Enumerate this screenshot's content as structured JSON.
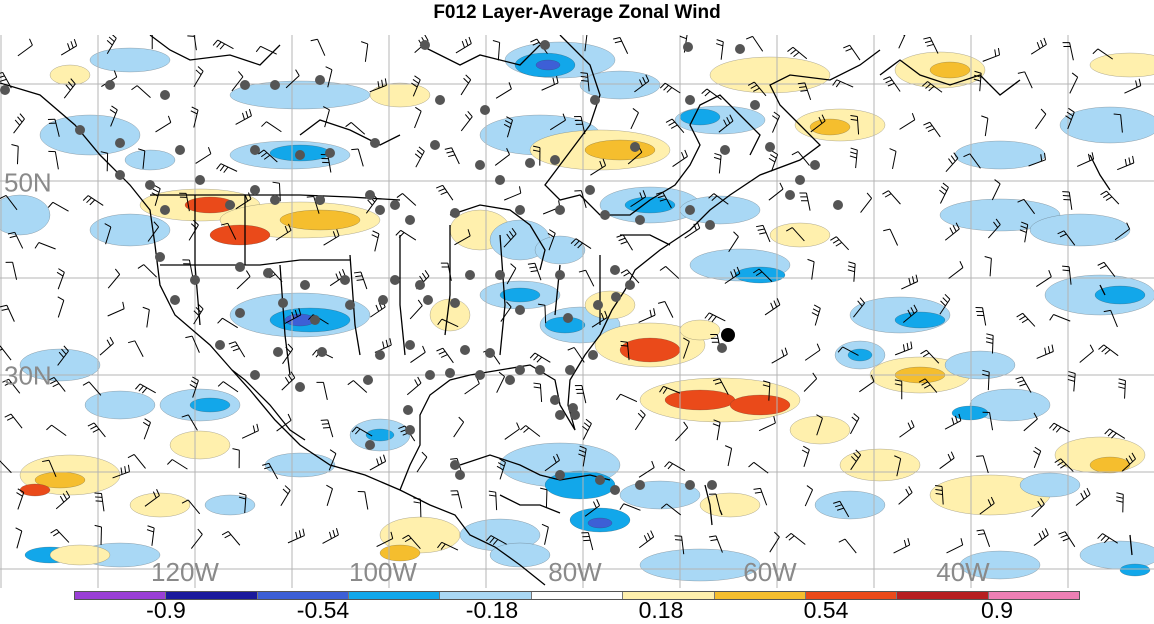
{
  "title": "F012 Layer-Average Zonal Wind",
  "map": {
    "lon_labels": [
      "120W",
      "100W",
      "80W",
      "60W",
      "40W"
    ],
    "lat_labels": [
      "50N",
      "30N"
    ],
    "colors": {
      "land_outline": "#000000",
      "grid": "#b4b4b4",
      "station": "#555555",
      "barb": "#000000"
    }
  },
  "colorbar": {
    "labels": [
      "-0.9",
      "-0.54",
      "-0.18",
      "0.18",
      "0.54",
      "0.9"
    ],
    "colors": [
      "#9a3fd6",
      "#1b1a9c",
      "#3d5fd6",
      "#12a7ea",
      "#a9d8f5",
      "#ffffff",
      "#fff0ad",
      "#f5be2e",
      "#ea4a1a",
      "#b61e20",
      "#ee7fb4"
    ]
  }
}
